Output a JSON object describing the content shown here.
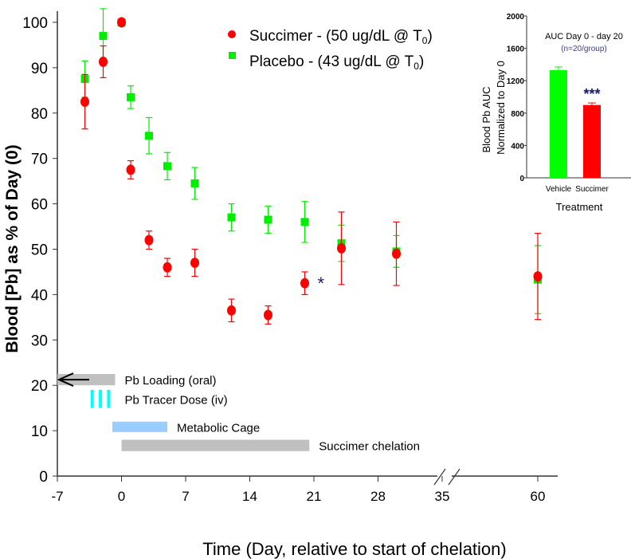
{
  "chart_data": [
    {
      "type": "scatter",
      "title": "",
      "xlabel": "Time (Day, relative to start of chelation)",
      "ylabel": "Blood [Pb] as % of Day (0)",
      "ylim": [
        0,
        100
      ],
      "xticks": [
        -7,
        0,
        7,
        14,
        21,
        28,
        35,
        60
      ],
      "yticks": [
        0,
        10,
        20,
        30,
        40,
        50,
        60,
        70,
        80,
        90,
        100
      ],
      "x_axis_break": "between 35 and 60",
      "legend_position": "top-center",
      "series": [
        {
          "name": "Succimer",
          "label_main": "Succimer - (50 ug/dL @ T",
          "label_sub": "0",
          "label_end": ")",
          "color": "#ff0000",
          "marker": "circle",
          "x": [
            -4,
            -2,
            0,
            1,
            3,
            5,
            8,
            12,
            16,
            20,
            24,
            30,
            60
          ],
          "y": [
            82.5,
            91.3,
            100,
            67.5,
            52,
            46,
            47,
            36.5,
            35.5,
            42.5,
            50.2,
            49,
            44
          ],
          "err": [
            6,
            3.5,
            0,
            2,
            2,
            2,
            3,
            2.5,
            2,
            2.5,
            8,
            7,
            9.5
          ]
        },
        {
          "name": "Placebo",
          "label_main": "Placebo - (43 ug/dL @ T",
          "label_sub": "0",
          "label_end": ")",
          "color": "#00ee00",
          "marker": "square",
          "x": [
            -4,
            -2,
            0,
            1,
            3,
            5,
            8,
            12,
            16,
            20,
            24,
            30,
            60
          ],
          "y": [
            87.5,
            97,
            100,
            83.5,
            75,
            68.3,
            64.5,
            57,
            56.5,
            56,
            51.3,
            49.5,
            43.3
          ],
          "err": [
            4,
            6,
            0,
            2.5,
            4,
            3,
            3.5,
            3,
            3,
            4.5,
            4,
            3.5,
            7.5
          ]
        }
      ],
      "significance": {
        "x": 20,
        "y": 42.5,
        "label": "*"
      },
      "annotations": [
        {
          "label": "Pb Loading (oral)",
          "kind": "bar",
          "x_start": -7,
          "x_end": -0.7,
          "y_low": 20,
          "y_high": 22.5,
          "color": "#c0c0c0",
          "arrow": "left"
        },
        {
          "label": "Pb Tracer Dose (iv)",
          "kind": "ticks",
          "x": [
            -3.2,
            -2.3,
            -1.4
          ],
          "y_low": 15,
          "y_high": 19,
          "color": "#00ffff"
        },
        {
          "label": "Metabolic Cage",
          "kind": "bar",
          "x_start": -1,
          "x_end": 5,
          "y_low": 9.7,
          "y_high": 12,
          "color": "#99ccff"
        },
        {
          "label": "Succimer chelation",
          "kind": "bar",
          "x_start": 0,
          "x_end": 20.5,
          "y_low": 5.5,
          "y_high": 8,
          "color": "#c0c0c0"
        }
      ]
    },
    {
      "type": "bar",
      "title": "AUC Day 0 - day 20",
      "subtitle": "(n=20/group)",
      "xlabel": "Treatment",
      "ylabel_line1": "Blood Pb  AUC",
      "ylabel_line2": "Normalized  to Day 0",
      "ylim": [
        0,
        2000
      ],
      "yticks": [
        0,
        400,
        800,
        1200,
        1600,
        2000
      ],
      "categories": [
        "Vehicle",
        "Succimer"
      ],
      "values": [
        1330,
        900
      ],
      "errors": [
        40,
        25
      ],
      "colors": [
        "#00ff00",
        "#ff0000"
      ],
      "significance": "***"
    }
  ]
}
